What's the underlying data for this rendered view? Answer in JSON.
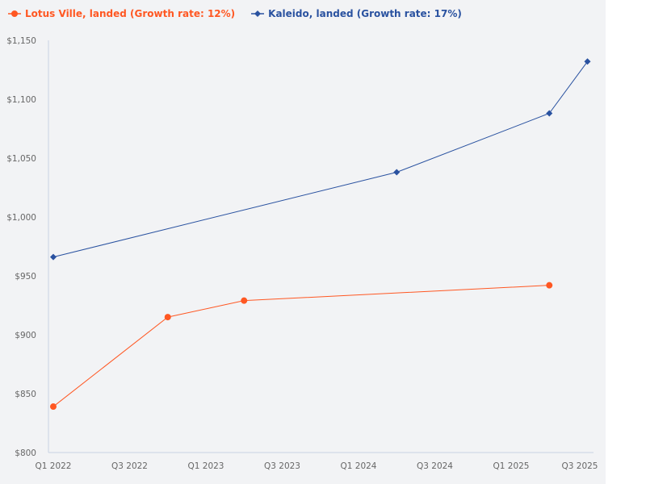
{
  "chart_data": {
    "type": "line",
    "title": "",
    "xlabel": "",
    "ylabel": "",
    "ylim": [
      800,
      1150
    ],
    "y_ticks": [
      "$800",
      "$850",
      "$900",
      "$950",
      "$1,000",
      "$1,050",
      "$1,100",
      "$1,150"
    ],
    "y_tick_values": [
      800,
      850,
      900,
      950,
      1000,
      1050,
      1100,
      1150
    ],
    "x_ticks": [
      "Q1 2022",
      "Q3 2022",
      "Q1 2023",
      "Q3 2023",
      "Q1 2024",
      "Q3 2024",
      "Q1 2025",
      "Q3 2025"
    ],
    "x_tick_values": [
      "2022-01",
      "2022-07",
      "2023-01",
      "2023-07",
      "2024-01",
      "2024-07",
      "2025-01",
      "2025-07"
    ],
    "grid": false,
    "legend": "top-left",
    "series": [
      {
        "name": "Lotus Ville, landed (Growth rate: 12%)",
        "color": "#ff5722",
        "marker": "circle",
        "x": [
          "2022-01",
          "2022-10",
          "2023-04",
          "2025-04"
        ],
        "values": [
          839,
          915,
          929,
          942
        ]
      },
      {
        "name": "Kaleido, landed (Growth rate: 17%)",
        "color": "#2a52a0",
        "marker": "diamond",
        "x": [
          "2022-01",
          "2024-04",
          "2025-04",
          "2025-07"
        ],
        "values": [
          966,
          1038,
          1088,
          1132
        ]
      }
    ]
  }
}
